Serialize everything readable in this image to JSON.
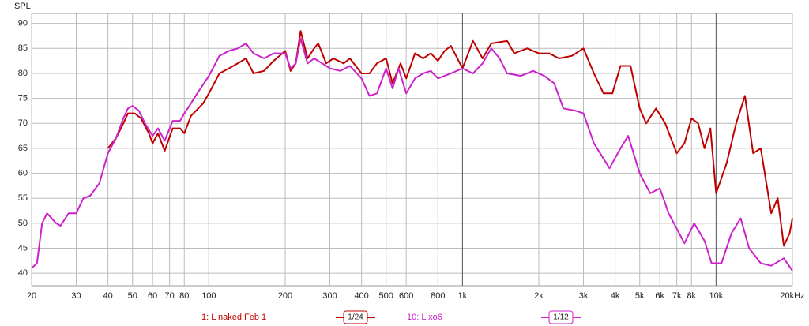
{
  "chart_data": {
    "type": "line",
    "y_label": "SPL",
    "log_x": true,
    "grid": true,
    "xlim": [
      20,
      20000
    ],
    "ylim": [
      37.5,
      92
    ],
    "xticks": [
      20,
      30,
      40,
      50,
      60,
      70,
      80,
      100,
      200,
      300,
      400,
      500,
      600,
      800,
      {
        "value": 1000,
        "label": "1k"
      },
      {
        "value": 2000,
        "label": "2k"
      },
      {
        "value": 3000,
        "label": "3k"
      },
      {
        "value": 4000,
        "label": "4k"
      },
      {
        "value": 5000,
        "label": "5k"
      },
      {
        "value": 6000,
        "label": "6k"
      },
      {
        "value": 7000,
        "label": "7k"
      },
      {
        "value": 8000,
        "label": "8k"
      },
      {
        "value": 10000,
        "label": "10k"
      },
      {
        "value": 20000,
        "label": "20kHz"
      }
    ],
    "yticks": [
      40,
      45,
      50,
      55,
      60,
      65,
      70,
      75,
      80,
      85,
      90
    ],
    "series": [
      {
        "name": "1: L naked Feb 1",
        "smoothing": "1/24",
        "color": "#c00000",
        "x": [
          40,
          43,
          46,
          48,
          51,
          54,
          58,
          60,
          63,
          67,
          72,
          77,
          80,
          85,
          95,
          100,
          110,
          120,
          130,
          140,
          150,
          165,
          180,
          200,
          210,
          220,
          230,
          245,
          260,
          270,
          290,
          310,
          340,
          360,
          400,
          430,
          460,
          500,
          530,
          570,
          600,
          650,
          700,
          750,
          800,
          850,
          900,
          1000,
          1100,
          1200,
          1300,
          1500,
          1600,
          1800,
          2000,
          2200,
          2400,
          2700,
          3000,
          3300,
          3600,
          3900,
          4200,
          4600,
          5000,
          5300,
          5800,
          6300,
          7000,
          7500,
          8000,
          8500,
          9000,
          9500,
          10000,
          11000,
          12000,
          13000,
          14000,
          15000,
          16500,
          17500,
          18500,
          19500,
          20000
        ],
        "values": [
          65,
          67,
          70,
          72,
          72,
          71,
          68,
          66,
          68,
          64.5,
          69,
          69,
          68,
          71.5,
          74,
          76,
          80,
          81,
          82,
          83,
          80,
          80.5,
          82.5,
          84.5,
          80.5,
          82,
          88.5,
          83,
          85,
          86,
          82,
          83,
          82,
          83,
          80,
          80,
          82,
          83,
          78,
          82,
          79,
          84,
          83,
          84,
          82.5,
          84.5,
          85.5,
          81,
          86.5,
          83,
          86,
          86.5,
          84,
          85,
          84,
          84,
          83,
          83.5,
          85,
          80,
          76,
          76,
          81.5,
          81.5,
          73,
          70,
          73,
          70,
          64,
          66,
          71,
          70,
          65,
          69,
          56,
          62,
          70,
          75.5,
          64,
          65,
          52,
          55,
          45.5,
          48,
          51
        ]
      },
      {
        "name": "10: L xo6",
        "smoothing": "1/12",
        "color": "#cc22cc",
        "x": [
          20,
          21,
          22,
          23,
          25,
          26,
          28,
          30,
          32,
          34,
          37,
          40,
          43,
          46,
          48,
          50,
          53,
          56,
          60,
          63,
          67,
          72,
          77,
          80,
          85,
          90,
          100,
          110,
          120,
          130,
          140,
          150,
          165,
          180,
          200,
          210,
          220,
          230,
          245,
          260,
          280,
          300,
          330,
          360,
          400,
          430,
          460,
          500,
          530,
          560,
          600,
          650,
          700,
          750,
          800,
          900,
          1000,
          1100,
          1200,
          1300,
          1400,
          1500,
          1700,
          1900,
          2100,
          2300,
          2500,
          2800,
          3000,
          3300,
          3800,
          4200,
          4500,
          5000,
          5500,
          6000,
          6500,
          7500,
          8200,
          9000,
          9600,
          10500,
          11500,
          12500,
          13500,
          15000,
          16500,
          18500,
          20000
        ],
        "values": [
          41,
          42,
          50,
          52,
          50,
          49.5,
          52,
          52,
          55,
          55.5,
          58,
          64,
          67,
          71,
          73,
          73.5,
          72.5,
          70,
          67.5,
          69,
          66.5,
          70.5,
          70.5,
          72,
          74,
          76,
          79.5,
          83.5,
          84.5,
          85,
          86,
          84,
          83,
          84,
          84,
          81,
          82,
          87,
          82,
          83,
          82,
          81,
          80.5,
          81.5,
          79,
          75.5,
          76,
          81,
          77,
          81,
          76,
          79,
          80,
          80.5,
          79,
          80,
          81,
          80,
          82,
          85,
          83,
          80,
          79.5,
          80.5,
          79.5,
          78,
          73,
          72.5,
          72,
          66,
          61,
          65,
          67.5,
          60,
          56,
          57,
          52,
          46,
          50,
          46.5,
          42,
          42,
          48,
          51,
          45,
          42,
          41.5,
          43,
          40.5
        ]
      }
    ]
  }
}
